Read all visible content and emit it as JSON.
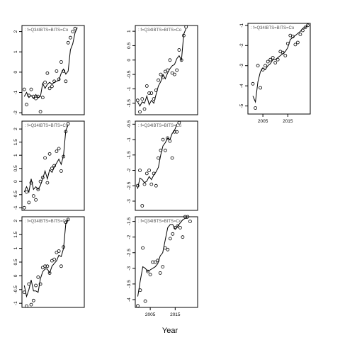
{
  "figure": {
    "xlabel": "Year"
  },
  "chart_data": [
    {
      "type": "scatter",
      "annotation": ": f=Q34IBTS=BITS=Co",
      "x_ticks": [],
      "y_ticks": [
        2,
        1,
        0,
        -1,
        -2
      ],
      "ylim": [
        -2.1,
        2.3
      ],
      "xlim": [
        1997,
        2024
      ],
      "x": [
        1998,
        1999,
        2000,
        2001,
        2002,
        2003,
        2004,
        2005,
        2006,
        2007,
        2008,
        2009,
        2010,
        2011,
        2012,
        2013,
        2014,
        2015,
        2016,
        2017,
        2018,
        2019,
        2020,
        2021,
        2022
      ],
      "points": [
        -0.85,
        -1.6,
        -1.15,
        -0.85,
        -1.2,
        -1.3,
        -1.2,
        -1.95,
        -1.25,
        -0.5,
        -0.05,
        -0.8,
        -0.7,
        -0.45,
        0.05,
        -0.35,
        0.5,
        0.05,
        -0.45,
        1.45,
        1.7,
        2.0,
        2.15,
        null,
        null
      ],
      "fit": [
        -1.2,
        -1.0,
        -1.25,
        -1.15,
        -1.3,
        -1.1,
        -1.25,
        -1.2,
        -0.55,
        -0.8,
        -0.6,
        -0.5,
        -0.6,
        -0.5,
        -0.45,
        -0.4,
        -0.05,
        0.15,
        -0.1,
        0.05,
        1.1,
        1.4,
        1.95,
        2.2,
        null
      ]
    },
    {
      "type": "scatter",
      "annotation": ": f=Q34IBTS=BITS=Co",
      "x_ticks": [],
      "y_ticks": [
        1.0,
        0.5,
        0.0,
        -0.5,
        -1.0,
        -1.5
      ],
      "ylim": [
        -1.9,
        1.2
      ],
      "xlim": [
        1997,
        2024
      ],
      "x": [
        1998,
        1999,
        2000,
        2001,
        2002,
        2003,
        2004,
        2005,
        2006,
        2007,
        2008,
        2009,
        2010,
        2011,
        2012,
        2013,
        2014,
        2015,
        2016,
        2017,
        2018,
        2019,
        2020,
        2021,
        2022
      ],
      "points": [
        -1.4,
        -1.8,
        -1.35,
        -1.7,
        -0.9,
        -1.15,
        -1.15,
        -1.35,
        -1.05,
        -0.7,
        -0.5,
        -0.6,
        -0.4,
        -0.35,
        0.0,
        -0.45,
        -0.5,
        -0.35,
        0.35,
        0.0,
        0.85,
        1.15,
        null,
        null,
        null
      ],
      "fit": [
        -1.45,
        -1.6,
        -1.45,
        -1.5,
        -1.25,
        -1.55,
        -1.4,
        -1.5,
        -1.2,
        -0.9,
        -0.75,
        -0.5,
        -0.65,
        -0.45,
        -0.3,
        -0.2,
        -0.15,
        0.05,
        0.15,
        0.0,
        0.9,
        1.1,
        null,
        null,
        null
      ]
    },
    {
      "type": "scatter",
      "annotation": ": f=Q34IBTS=BITS=Co",
      "x_ticks": [
        2005,
        2015
      ],
      "y_ticks": [
        -1,
        -2,
        -3,
        -4,
        -5
      ],
      "ylim": [
        -5.4,
        -0.9
      ],
      "xlim": [
        1999,
        2024
      ],
      "x": [
        2001,
        2002,
        2003,
        2004,
        2005,
        2006,
        2007,
        2008,
        2009,
        2010,
        2011,
        2012,
        2013,
        2014,
        2015,
        2016,
        2017,
        2018,
        2019,
        2020,
        2021,
        2022,
        2023
      ],
      "points": [
        -3.9,
        -5.1,
        -3.0,
        -4.1,
        -3.2,
        -3.0,
        -2.8,
        -2.7,
        -2.6,
        -2.85,
        -2.7,
        -2.3,
        -2.35,
        -2.5,
        -1.9,
        -1.5,
        -1.55,
        -1.95,
        -1.85,
        -1.45,
        -1.25,
        -1.1,
        -1.0
      ],
      "fit": [
        -4.5,
        -4.8,
        -3.8,
        -3.3,
        -3.1,
        -3.2,
        -3.0,
        -2.9,
        -2.7,
        -2.7,
        -2.6,
        -2.5,
        -2.4,
        -2.3,
        -2.1,
        -1.7,
        -1.6,
        -1.5,
        -1.4,
        -1.3,
        -1.15,
        -1.1,
        -1.0
      ]
    },
    {
      "type": "scatter",
      "annotation": ": f=Q34IBTS=BITS=Co",
      "x_ticks": [],
      "y_ticks": [
        2.0,
        1.5,
        1.0,
        0.5,
        0.0,
        -0.5,
        -1.0
      ],
      "ylim": [
        -1.1,
        2.3
      ],
      "xlim": [
        1997,
        2024
      ],
      "x": [
        1998,
        1999,
        2000,
        2001,
        2002,
        2003,
        2004,
        2005,
        2006,
        2007,
        2008,
        2009,
        2010,
        2011,
        2012,
        2013,
        2014,
        2015,
        2016,
        2017,
        2018,
        2019,
        2020,
        2021,
        2022
      ],
      "points": [
        -1.0,
        -0.4,
        -0.8,
        -0.05,
        -0.55,
        -0.7,
        -0.3,
        0.0,
        0.15,
        0.9,
        -0.05,
        1.05,
        0.5,
        0.6,
        1.15,
        1.25,
        0.4,
        0.95,
        1.9,
        2.2,
        null,
        null,
        null,
        null,
        null
      ],
      "fit": [
        -0.4,
        -0.2,
        -0.4,
        0.1,
        -0.3,
        -0.2,
        -0.3,
        -0.15,
        0.1,
        0.4,
        0.1,
        0.45,
        0.35,
        0.55,
        0.7,
        0.85,
        0.65,
        1.0,
        1.95,
        2.15,
        null,
        null,
        null,
        null,
        null
      ]
    },
    {
      "type": "scatter",
      "annotation": ": f=Q34IBTS=BITS=Co",
      "x_ticks": [],
      "y_ticks": [
        -0.5,
        -1.0,
        -1.5,
        -2.0,
        -2.5,
        -3.0
      ],
      "ylim": [
        -3.3,
        -0.4
      ],
      "xlim": [
        1997,
        2024
      ],
      "x": [
        1998,
        1999,
        2000,
        2001,
        2002,
        2003,
        2004,
        2005,
        2006,
        2007,
        2008,
        2009,
        2010,
        2011,
        2012,
        2013,
        2014,
        2015,
        2016,
        2017,
        2018,
        2019,
        2020,
        2021,
        2022
      ],
      "points": [
        -2.5,
        -2.0,
        -3.15,
        -2.45,
        -2.1,
        -2.0,
        -2.45,
        -2.1,
        -2.5,
        -1.6,
        -1.35,
        -1.0,
        -1.35,
        -0.95,
        -1.05,
        -1.6,
        -0.75,
        -0.75,
        -0.45,
        null,
        null,
        null,
        null,
        null,
        null
      ],
      "fit": [
        -2.6,
        -2.25,
        -2.3,
        -2.4,
        -2.35,
        -2.2,
        -2.3,
        -2.15,
        -2.05,
        -1.9,
        -1.5,
        -1.2,
        -1.1,
        -0.95,
        -1.0,
        -0.8,
        -0.7,
        -0.5,
        null,
        null,
        null,
        null,
        null,
        null,
        null
      ]
    },
    {
      "type": "scatter",
      "annotation": ": f=Q34IBTS=BITS=Co",
      "x_ticks": [],
      "y_ticks": [
        2.0,
        1.5,
        1.0,
        0.5,
        0.0,
        -0.5,
        -1.0
      ],
      "ylim": [
        -1.15,
        2.15
      ],
      "xlim": [
        1997,
        2024
      ],
      "x": [
        1998,
        1999,
        2000,
        2001,
        2002,
        2003,
        2004,
        2005,
        2006,
        2007,
        2008,
        2009,
        2010,
        2011,
        2012,
        2013,
        2014,
        2015,
        2016,
        2017,
        2018,
        2019,
        2020,
        2021,
        2022
      ],
      "points": [
        -0.6,
        -1.1,
        -0.3,
        -1.05,
        -0.9,
        -0.35,
        -0.05,
        -0.3,
        0.3,
        0.35,
        0.35,
        0.1,
        0.55,
        0.6,
        0.85,
        0.9,
        0.35,
        1.05,
        1.95,
        2.05,
        null,
        null,
        null,
        null,
        null
      ],
      "fit": [
        -0.35,
        -0.75,
        -0.5,
        -0.15,
        -0.55,
        -0.55,
        -0.6,
        -0.1,
        0.15,
        0.25,
        0.25,
        0.1,
        0.35,
        0.45,
        0.55,
        0.75,
        0.7,
        1.0,
        1.9,
        2.05,
        null,
        null,
        null,
        null,
        null
      ]
    },
    {
      "type": "scatter",
      "annotation": ": f=Q34IBTS=BITS=Co",
      "x_ticks": [
        2005,
        2015
      ],
      "y_ticks": [
        -1.5,
        -2.0,
        -2.5,
        -3.0,
        -3.5,
        -4.0
      ],
      "ylim": [
        -4.25,
        -1.35
      ],
      "xlim": [
        1999,
        2024
      ],
      "x": [
        2000,
        2001,
        2002,
        2003,
        2004,
        2005,
        2006,
        2007,
        2008,
        2009,
        2010,
        2011,
        2012,
        2013,
        2014,
        2015,
        2016,
        2017,
        2018,
        2019,
        2020,
        2021,
        2022
      ],
      "points": [
        -4.2,
        -3.7,
        -2.35,
        -4.05,
        -3.1,
        -3.2,
        -2.8,
        -2.8,
        -2.75,
        -3.15,
        -2.95,
        -2.35,
        -2.4,
        -2.05,
        -1.9,
        -1.7,
        -1.65,
        -1.7,
        -2.0,
        -1.35,
        -1.35,
        -1.5,
        null
      ],
      "fit": [
        -3.9,
        -3.4,
        -2.95,
        -3.0,
        -3.1,
        -3.05,
        -3.0,
        -2.95,
        -2.85,
        -2.6,
        -2.5,
        -2.1,
        -1.7,
        -1.6,
        -1.6,
        -1.75,
        -1.65,
        -1.55,
        -1.45,
        -1.4,
        -1.4,
        null,
        null
      ]
    }
  ]
}
